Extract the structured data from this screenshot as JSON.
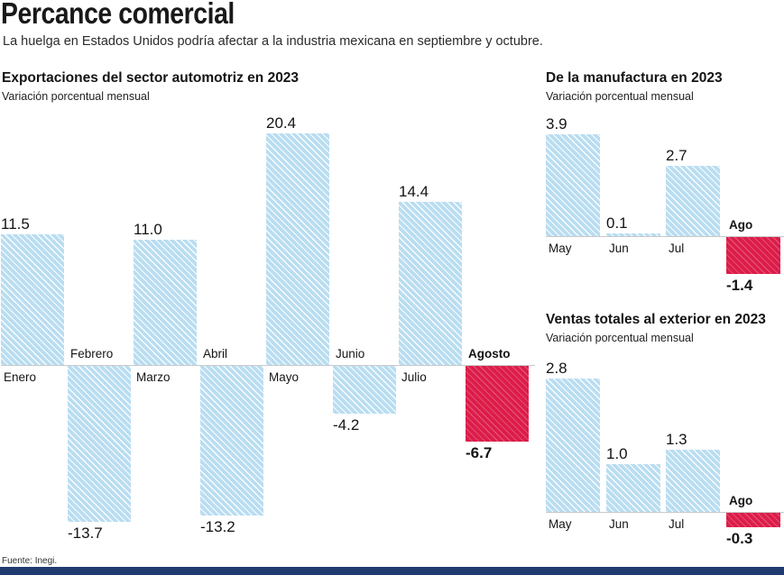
{
  "header": {
    "title": "Percance comercial",
    "subtitle": "La huelga en Estados Unidos podría afectar a la industria mexicana en septiembre y octubre."
  },
  "footer": {
    "source": "Fuente: Inegi."
  },
  "colors": {
    "positive_bar": "#b9ddf1",
    "negative_bar": "#dc1c49",
    "baseline": "#c9c9c9",
    "bottom_bar": "#1f3b6f"
  },
  "chart_data": [
    {
      "type": "bar",
      "title": "Exportaciones del sector automotriz en 2023",
      "subtitle": "Variación porcentual mensual",
      "categories": [
        "Enero",
        "Febrero",
        "Marzo",
        "Abril",
        "Mayo",
        "Junio",
        "Julio",
        "Agosto"
      ],
      "values": [
        11.5,
        -13.7,
        11.0,
        -13.2,
        20.4,
        -4.2,
        14.4,
        -6.7
      ],
      "highlight_index": 7,
      "xlabel": "",
      "ylabel": "Variación porcentual mensual",
      "ylim": [
        -14.5,
        21
      ],
      "grid": false,
      "legend": "none"
    },
    {
      "type": "bar",
      "title": "De la manufactura en 2023",
      "subtitle": "Variación porcentual mensual",
      "categories": [
        "May",
        "Jun",
        "Jul",
        "Ago"
      ],
      "values": [
        3.9,
        0.1,
        2.7,
        -1.4
      ],
      "highlight_index": 3,
      "xlabel": "",
      "ylabel": "Variación porcentual mensual",
      "ylim": [
        -1.6,
        4.2
      ],
      "grid": false,
      "legend": "none"
    },
    {
      "type": "bar",
      "title": "Ventas totales al exterior en 2023",
      "subtitle": "Variación porcentual mensual",
      "categories": [
        "May",
        "Jun",
        "Jul",
        "Ago"
      ],
      "values": [
        2.8,
        1.0,
        1.3,
        -0.3
      ],
      "highlight_index": 3,
      "xlabel": "",
      "ylabel": "Variación porcentual mensual",
      "ylim": [
        -0.5,
        3.0
      ],
      "grid": false,
      "legend": "none"
    }
  ]
}
